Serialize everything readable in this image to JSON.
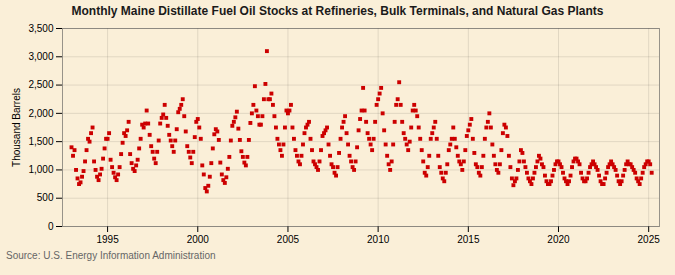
{
  "chart_data": {
    "type": "scatter",
    "title": "Monthly Maine Distillate Fuel Oil Stocks at Refineries, Bulk Terminals, and Natural Gas Plants",
    "ylabel": "Thousand Barrels",
    "source": "Source: U.S. Energy Information Administration",
    "color": "#cc0000",
    "marker": "square",
    "grid": true,
    "xlim": [
      1992.5,
      2025.6
    ],
    "xticks": [
      1995,
      2000,
      2005,
      2010,
      2015,
      2020,
      2025
    ],
    "ylim": [
      0,
      3500
    ],
    "yticks": [
      0,
      500,
      {
        "value": 1000,
        "label": "1,000"
      },
      {
        "value": 1500,
        "label": "1,500"
      },
      {
        "value": 2000,
        "label": "2,000"
      },
      {
        "value": 2500,
        "label": "2,500"
      },
      {
        "value": 3000,
        "label": "3,000"
      },
      {
        "value": 3500,
        "label": "3,500"
      }
    ],
    "x": [
      1993,
      1993.083333,
      1993.166667,
      1993.25,
      1993.333333,
      1993.416667,
      1993.5,
      1993.583333,
      1993.666667,
      1993.75,
      1993.833333,
      1993.916667,
      1994,
      1994.083333,
      1994.166667,
      1994.25,
      1994.333333,
      1994.416667,
      1994.5,
      1994.583333,
      1994.666667,
      1994.75,
      1994.833333,
      1994.916667,
      1995,
      1995.083333,
      1995.166667,
      1995.25,
      1995.333333,
      1995.416667,
      1995.5,
      1995.583333,
      1995.666667,
      1995.75,
      1995.833333,
      1995.916667,
      1996,
      1996.083333,
      1996.166667,
      1996.25,
      1996.333333,
      1996.416667,
      1996.5,
      1996.583333,
      1996.666667,
      1996.75,
      1996.833333,
      1996.916667,
      1997,
      1997.083333,
      1997.166667,
      1997.25,
      1997.333333,
      1997.416667,
      1997.5,
      1997.583333,
      1997.666667,
      1997.75,
      1997.833333,
      1997.916667,
      1998,
      1998.083333,
      1998.166667,
      1998.25,
      1998.333333,
      1998.416667,
      1998.5,
      1998.583333,
      1998.666667,
      1998.75,
      1998.833333,
      1998.916667,
      1999,
      1999.083333,
      1999.166667,
      1999.25,
      1999.333333,
      1999.416667,
      1999.5,
      1999.583333,
      1999.666667,
      1999.75,
      1999.833333,
      1999.916667,
      2000,
      2000.083333,
      2000.166667,
      2000.25,
      2000.333333,
      2000.416667,
      2000.5,
      2000.583333,
      2000.666667,
      2000.75,
      2000.833333,
      2000.916667,
      2001,
      2001.083333,
      2001.166667,
      2001.25,
      2001.333333,
      2001.416667,
      2001.5,
      2001.583333,
      2001.666667,
      2001.75,
      2001.833333,
      2001.916667,
      2002,
      2002.083333,
      2002.166667,
      2002.25,
      2002.333333,
      2002.416667,
      2002.5,
      2002.583333,
      2002.666667,
      2002.75,
      2002.833333,
      2002.916667,
      2003,
      2003.083333,
      2003.166667,
      2003.25,
      2003.333333,
      2003.416667,
      2003.5,
      2003.583333,
      2003.666667,
      2003.75,
      2003.833333,
      2003.916667,
      2004,
      2004.083333,
      2004.166667,
      2004.25,
      2004.333333,
      2004.416667,
      2004.5,
      2004.583333,
      2004.666667,
      2004.75,
      2004.833333,
      2004.916667,
      2005,
      2005.083333,
      2005.166667,
      2005.25,
      2005.333333,
      2005.416667,
      2005.5,
      2005.583333,
      2005.666667,
      2005.75,
      2005.833333,
      2005.916667,
      2006,
      2006.083333,
      2006.166667,
      2006.25,
      2006.333333,
      2006.416667,
      2006.5,
      2006.583333,
      2006.666667,
      2006.75,
      2006.833333,
      2006.916667,
      2007,
      2007.083333,
      2007.166667,
      2007.25,
      2007.333333,
      2007.416667,
      2007.5,
      2007.583333,
      2007.666667,
      2007.75,
      2007.833333,
      2007.916667,
      2008,
      2008.083333,
      2008.166667,
      2008.25,
      2008.333333,
      2008.416667,
      2008.5,
      2008.583333,
      2008.666667,
      2008.75,
      2008.833333,
      2008.916667,
      2009,
      2009.083333,
      2009.166667,
      2009.25,
      2009.333333,
      2009.416667,
      2009.5,
      2009.583333,
      2009.666667,
      2009.75,
      2009.833333,
      2009.916667,
      2010,
      2010.083333,
      2010.166667,
      2010.25,
      2010.333333,
      2010.416667,
      2010.5,
      2010.583333,
      2010.666667,
      2010.75,
      2010.833333,
      2010.916667,
      2011,
      2011.083333,
      2011.166667,
      2011.25,
      2011.333333,
      2011.416667,
      2011.5,
      2011.583333,
      2011.666667,
      2011.75,
      2011.833333,
      2011.916667,
      2012,
      2012.083333,
      2012.166667,
      2012.25,
      2012.333333,
      2012.416667,
      2012.5,
      2012.583333,
      2012.666667,
      2012.75,
      2012.833333,
      2012.916667,
      2013,
      2013.083333,
      2013.166667,
      2013.25,
      2013.333333,
      2013.416667,
      2013.5,
      2013.583333,
      2013.666667,
      2013.75,
      2013.833333,
      2013.916667,
      2014,
      2014.083333,
      2014.166667,
      2014.25,
      2014.333333,
      2014.416667,
      2014.5,
      2014.583333,
      2014.666667,
      2014.75,
      2014.833333,
      2014.916667,
      2015,
      2015.083333,
      2015.166667,
      2015.25,
      2015.333333,
      2015.416667,
      2015.5,
      2015.583333,
      2015.666667,
      2015.75,
      2015.833333,
      2015.916667,
      2016,
      2016.083333,
      2016.166667,
      2016.25,
      2016.333333,
      2016.416667,
      2016.5,
      2016.583333,
      2016.666667,
      2016.75,
      2016.833333,
      2016.916667,
      2017,
      2017.083333,
      2017.166667,
      2017.25,
      2017.333333,
      2017.416667,
      2017.5,
      2017.583333,
      2017.666667,
      2017.75,
      2017.833333,
      2017.916667,
      2018,
      2018.083333,
      2018.166667,
      2018.25,
      2018.333333,
      2018.416667,
      2018.5,
      2018.583333,
      2018.666667,
      2018.75,
      2018.833333,
      2018.916667,
      2019,
      2019.083333,
      2019.166667,
      2019.25,
      2019.333333,
      2019.416667,
      2019.5,
      2019.583333,
      2019.666667,
      2019.75,
      2019.833333,
      2019.916667,
      2020,
      2020.083333,
      2020.166667,
      2020.25,
      2020.333333,
      2020.416667,
      2020.5,
      2020.583333,
      2020.666667,
      2020.75,
      2020.833333,
      2020.916667,
      2021,
      2021.083333,
      2021.166667,
      2021.25,
      2021.333333,
      2021.416667,
      2021.5,
      2021.583333,
      2021.666667,
      2021.75,
      2021.833333,
      2021.916667,
      2022,
      2022.083333,
      2022.166667,
      2022.25,
      2022.333333,
      2022.416667,
      2022.5,
      2022.583333,
      2022.666667,
      2022.75,
      2022.833333,
      2022.916667,
      2023,
      2023.083333,
      2023.166667,
      2023.25,
      2023.333333,
      2023.416667,
      2023.5,
      2023.583333,
      2023.666667,
      2023.75,
      2023.833333,
      2023.916667,
      2024,
      2024.083333,
      2024.166667,
      2024.25,
      2024.333333,
      2024.416667,
      2024.5,
      2024.583333,
      2024.666667,
      2024.75,
      2024.833333,
      2024.916667,
      2025,
      2025.083333,
      2025.166667
    ],
    "values": [
      1400,
      1250,
      1350,
      1000,
      850,
      750,
      780,
      880,
      980,
      1150,
      1350,
      1550,
      1500,
      1650,
      1750,
      1150,
      1000,
      880,
      820,
      920,
      1020,
      1200,
      1380,
      1550,
      1550,
      1650,
      1180,
      1050,
      950,
      870,
      820,
      920,
      1050,
      1280,
      1480,
      1650,
      1600,
      1700,
      1850,
      1280,
      1120,
      1020,
      980,
      1080,
      1180,
      1380,
      1550,
      1800,
      1750,
      1820,
      2050,
      1820,
      1620,
      1420,
      1320,
      1200,
      1120,
      1320,
      1520,
      1820,
      1920,
      1980,
      2150,
      1920,
      1780,
      1620,
      1520,
      1420,
      1320,
      1520,
      1720,
      2020,
      2080,
      2150,
      2250,
      1950,
      1680,
      1420,
      1320,
      1220,
      1120,
      1320,
      1580,
      1850,
      1900,
      1750,
      1550,
      1080,
      920,
      680,
      620,
      720,
      880,
      1120,
      1380,
      1630,
      1720,
      1680,
      1530,
      1130,
      920,
      820,
      770,
      870,
      1020,
      1230,
      1520,
      1780,
      1850,
      1930,
      2030,
      1730,
      1530,
      1330,
      1230,
      1130,
      1080,
      1230,
      1530,
      1830,
      2000,
      2150,
      2480,
      2050,
      1950,
      1800,
      1800,
      1950,
      2250,
      2520,
      3100,
      2250,
      2250,
      2350,
      2150,
      1950,
      1750,
      1550,
      1450,
      1350,
      1250,
      1450,
      1750,
      2050,
      2000,
      2050,
      2150,
      1750,
      1550,
      1350,
      1250,
      1150,
      1100,
      1250,
      1450,
      1650,
      1750,
      1800,
      1850,
      1550,
      1350,
      1150,
      1100,
      1050,
      1000,
      1150,
      1350,
      1600,
      1650,
      1700,
      1750,
      1450,
      1250,
      1100,
      1050,
      950,
      900,
      1050,
      1300,
      1550,
      1750,
      1850,
      1950,
      1650,
      1450,
      1250,
      1150,
      1050,
      1000,
      1150,
      1400,
      1700,
      1900,
      2050,
      2450,
      2050,
      1850,
      1650,
      1550,
      1450,
      1350,
      1550,
      1850,
      2150,
      2250,
      2350,
      2450,
      2000,
      1700,
      1450,
      1250,
      1100,
      1000,
      1150,
      1450,
      1850,
      2150,
      2250,
      2550,
      2150,
      1850,
      1650,
      1550,
      1450,
      1350,
      1500,
      1750,
      2050,
      2150,
      2050,
      1950,
      1750,
      1550,
      1350,
      1150,
      950,
      900,
      1050,
      1250,
      1550,
      1650,
      1750,
      1850,
      1550,
      1250,
      1050,
      950,
      850,
      800,
      950,
      1100,
      1350,
      1450,
      1550,
      1750,
      1550,
      1400,
      1250,
      1150,
      1100,
      1000,
      1150,
      1350,
      1600,
      1700,
      1800,
      1900,
      1550,
      1300,
      1100,
      1050,
      950,
      900,
      1050,
      1250,
      1550,
      1750,
      1850,
      2000,
      1750,
      1450,
      1250,
      1100,
      1000,
      950,
      1100,
      1350,
      1650,
      1800,
      1750,
      1600,
      1250,
      1050,
      850,
      730,
      800,
      850,
      1000,
      1150,
      1350,
      1300,
      1150,
      1050,
      950,
      850,
      800,
      750,
      850,
      950,
      1050,
      1150,
      1250,
      1200,
      1100,
      1050,
      900,
      800,
      750,
      750,
      800,
      900,
      1000,
      1100,
      1150,
      1150,
      1100,
      1050,
      950,
      850,
      800,
      750,
      800,
      900,
      1050,
      1150,
      1200,
      1200,
      1150,
      1100,
      950,
      850,
      800,
      800,
      850,
      950,
      1050,
      1100,
      1150,
      1100,
      1050,
      1000,
      900,
      800,
      750,
      750,
      850,
      950,
      1050,
      1100,
      1150,
      1100,
      1050,
      1000,
      900,
      800,
      750,
      800,
      900,
      1000,
      1100,
      1150,
      1100,
      1100,
      1050,
      1000,
      950,
      850,
      800,
      750,
      850,
      950,
      1050,
      1100,
      1150,
      1150,
      1100,
      950
    ]
  }
}
